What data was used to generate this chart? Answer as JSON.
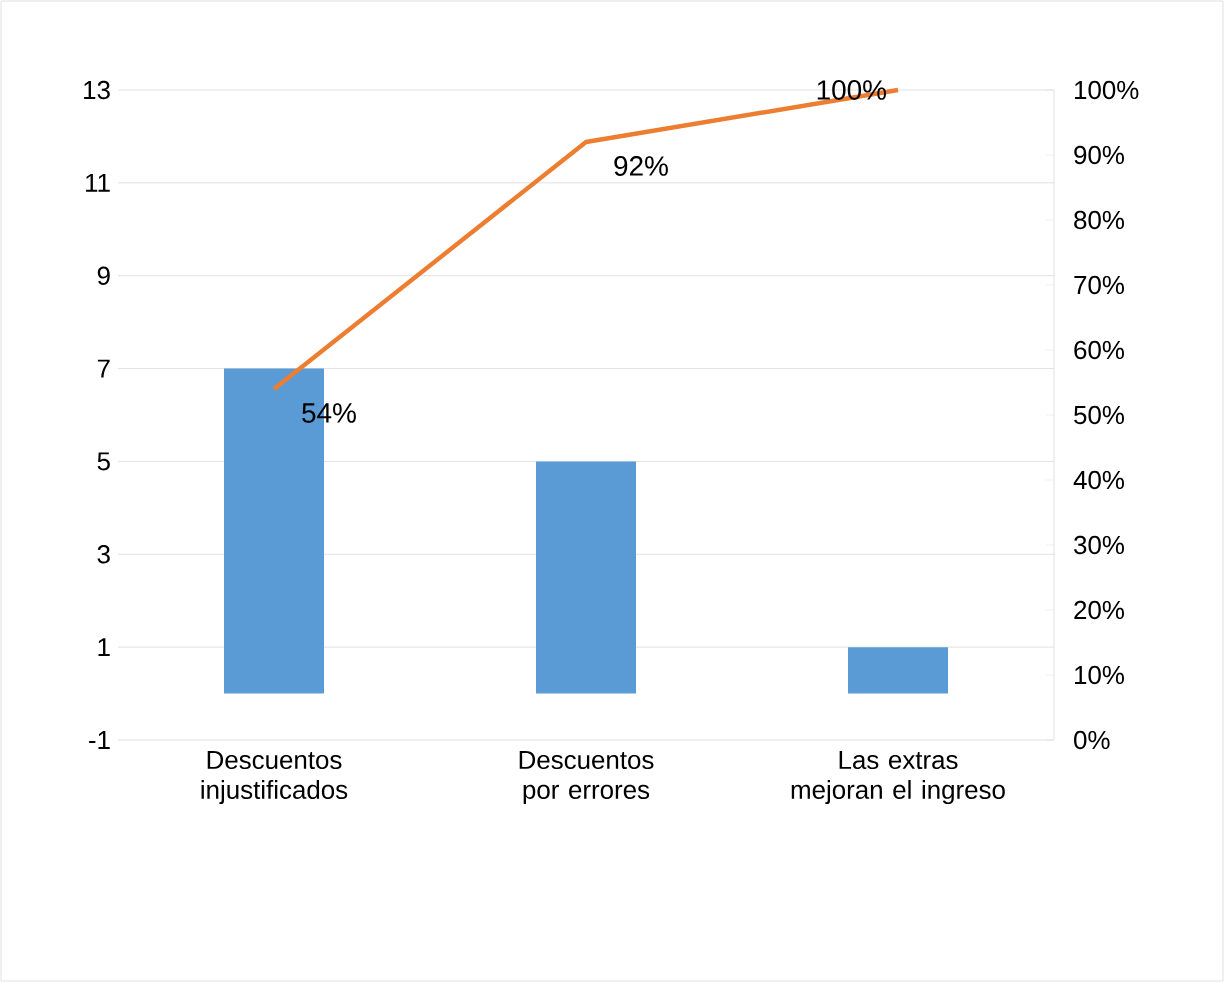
{
  "chart_data": {
    "type": "bar",
    "categories": [
      "Descuentos injustificados",
      "Descuentos por errores",
      "Las extras mejoran el ingreso"
    ],
    "series": [
      {
        "color": "#5b9bd5",
        "values": [
          7,
          5,
          1
        ]
      },
      {
        "type": "line",
        "axis": "y2",
        "color": "#ed7d31",
        "values": [
          54,
          92,
          100
        ],
        "value_labels": [
          "54%",
          "92%",
          "100%"
        ]
      }
    ],
    "ylim": [
      -1,
      13
    ],
    "yticks": [
      -1,
      1,
      3,
      5,
      7,
      9,
      11,
      13
    ],
    "y2lim": [
      0,
      100
    ],
    "y2ticks": [
      {
        "value": 0,
        "label": "0%"
      },
      {
        "value": 10,
        "label": "10%"
      },
      {
        "value": 20,
        "label": "20%"
      },
      {
        "value": 30,
        "label": "30%"
      },
      {
        "value": 40,
        "label": "40%"
      },
      {
        "value": 50,
        "label": "50%"
      },
      {
        "value": 60,
        "label": "60%"
      },
      {
        "value": 70,
        "label": "70%"
      },
      {
        "value": 80,
        "label": "80%"
      },
      {
        "value": 90,
        "label": "90%"
      },
      {
        "value": 100,
        "label": "100%"
      }
    ],
    "grid": "y"
  }
}
